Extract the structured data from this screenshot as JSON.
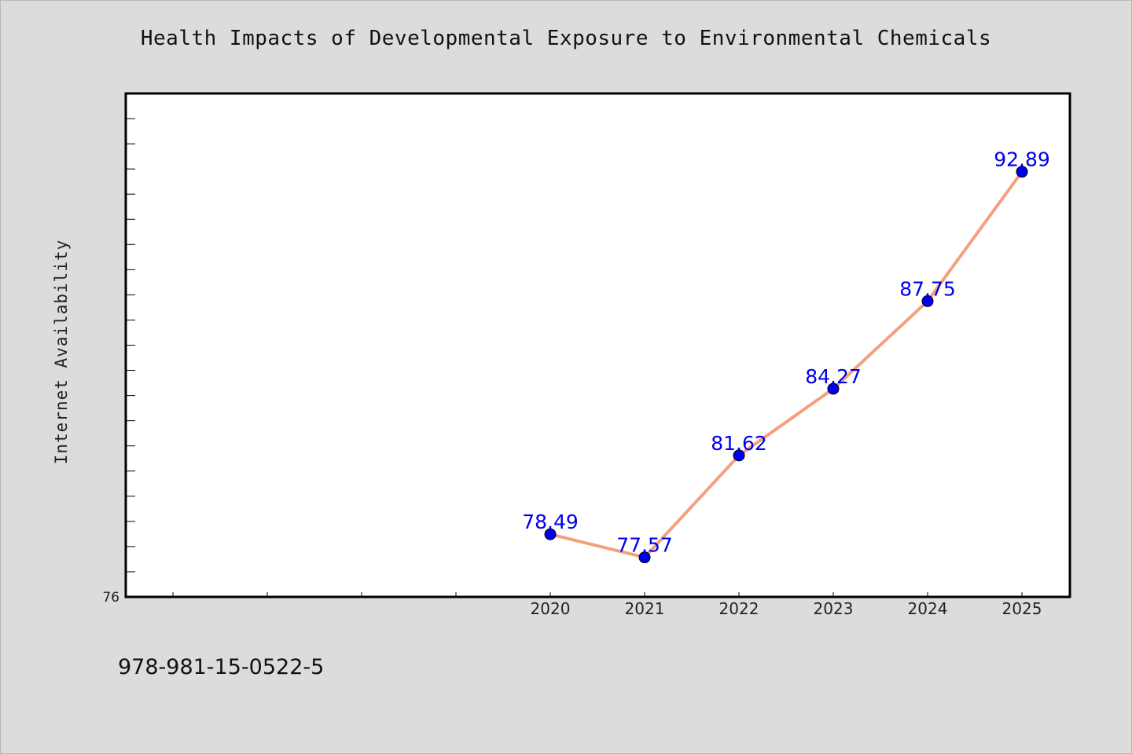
{
  "chart_data": {
    "type": "line",
    "title": "Health Impacts of Developmental Exposure to Environmental Chemicals",
    "xlabel": "",
    "ylabel": "Internet Availability",
    "x": [
      "2020",
      "2021",
      "2022",
      "2023",
      "2024",
      "2025"
    ],
    "series": [
      {
        "values": [
          78.49,
          77.57,
          81.62,
          84.27,
          87.75,
          92.89
        ],
        "labels": [
          "78.49",
          "77.57",
          "81.62",
          "84.27",
          "87.75",
          "92.89"
        ]
      }
    ],
    "ylim": [
      76,
      96
    ],
    "y_tick_labels": [
      "76"
    ],
    "grid": false,
    "legend": "none"
  },
  "footer": {
    "code": "978-981-15-0522-5"
  },
  "colors": {
    "background": "#dcdcdc",
    "plot_background": "#ffffff",
    "line": "#f4a07e",
    "marker": "#0000ee",
    "data_label": "#0000ee",
    "axis": "#000000"
  }
}
